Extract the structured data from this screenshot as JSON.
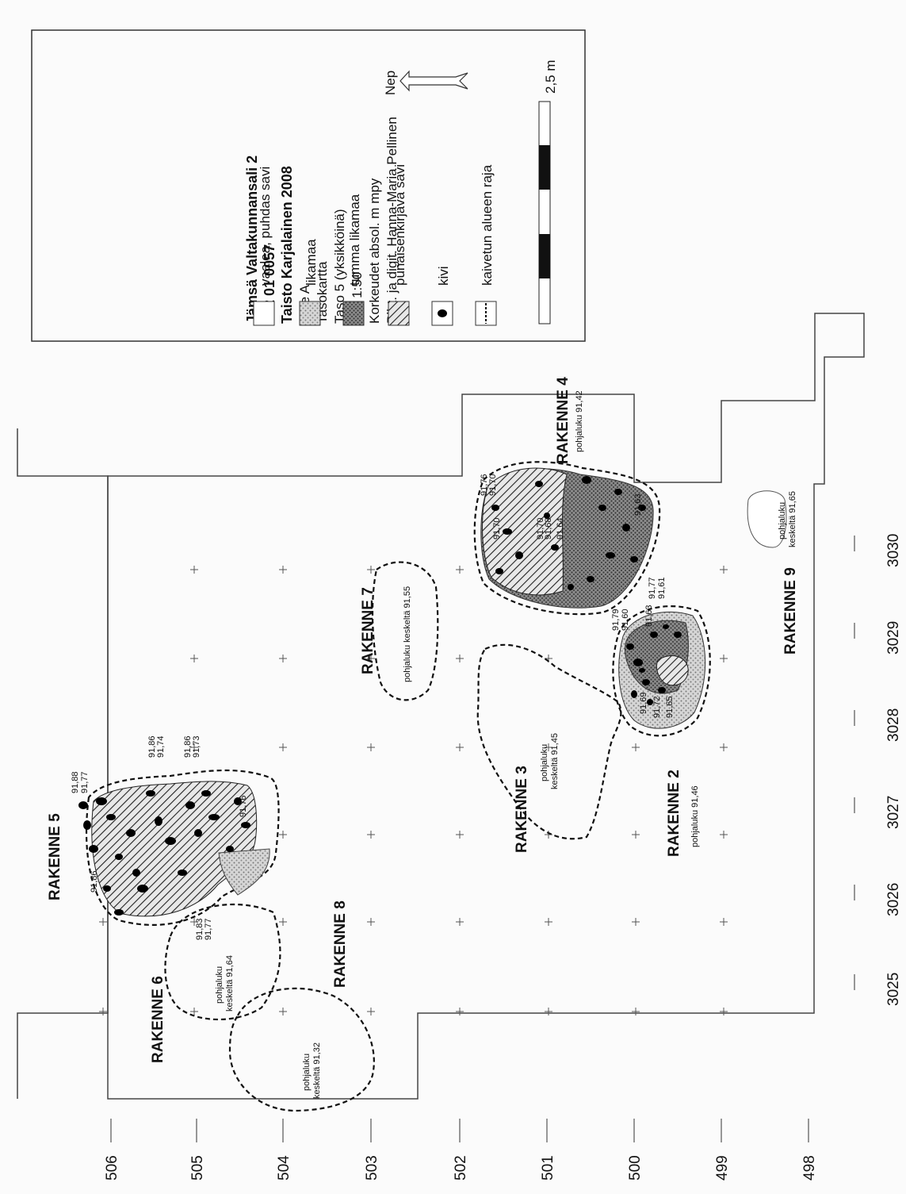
{
  "legend": {
    "title_lines": [
      "Jämsä Valtakunnansali 2",
      "182 01 0057",
      "Taisto Karjalainen 2008"
    ],
    "info_lines": [
      "Alue A",
      "Tasokartta",
      "Taso 5 (yksikköinä)",
      "Mk. 1:50",
      "Korkeudet absol. m mpy",
      "Piirt. ja digit. Hanna-Maria Pellinen"
    ],
    "items": [
      {
        "key": "light",
        "label": "vaalea, puhdas savi"
      },
      {
        "key": "dotted",
        "label": "likamaa"
      },
      {
        "key": "dark",
        "label": "tumma likamaa"
      },
      {
        "key": "hatched",
        "label": "punaisenkirjava savi"
      },
      {
        "key": "stone",
        "label": "kivi"
      },
      {
        "key": "border",
        "label": "kaivetun alueen raja"
      }
    ],
    "north_label": "Nep",
    "scale_label": "2,5 m"
  },
  "structures": {
    "r2": {
      "name": "RAKENNE 2",
      "note": "pohjaluku 91,46"
    },
    "r3": {
      "name": "RAKENNE 3",
      "note_lines": [
        "pohjaluku",
        "keskeltä 91,45"
      ]
    },
    "r4": {
      "name": "RAKENNE 4",
      "note": "pohjaluku 91,42"
    },
    "r5": {
      "name": "RAKENNE 5"
    },
    "r6": {
      "name": "RAKENNE 6",
      "note_lines": [
        "pohjaluku",
        "keskeltä 91,64"
      ]
    },
    "r7": {
      "name": "RAKENNE 7",
      "note": "pohjaluku keskeltä 91,55"
    },
    "r8": {
      "name": "RAKENNE 8",
      "note_lines": [
        "pohjaluku",
        "keskeltä 91,32"
      ]
    },
    "r9": {
      "name": "RAKENNE 9",
      "note_lines": [
        "pohjaluku",
        "keskeltä 91,65"
      ]
    }
  },
  "elevations": {
    "r5": [
      "91,88",
      "91,77",
      "91,86",
      "91,74",
      "91,86",
      "91,73",
      "91,76",
      "91,83",
      "91,77",
      "91,86"
    ],
    "r4": [
      "91,76",
      "91,70",
      "91,70",
      "91,70",
      "91,68",
      "91,64",
      "91,63"
    ],
    "r2": [
      "91,79",
      "91,60",
      "91,63",
      "91,77",
      "91,61",
      "91,69",
      "91,72",
      "91,65"
    ]
  },
  "axes": {
    "x_ticks": [
      "3025",
      "3026",
      "3027",
      "3028",
      "3029",
      "3030"
    ],
    "y_ticks": [
      "506",
      "505",
      "504",
      "503",
      "502",
      "501",
      "500",
      "499",
      "498"
    ]
  }
}
